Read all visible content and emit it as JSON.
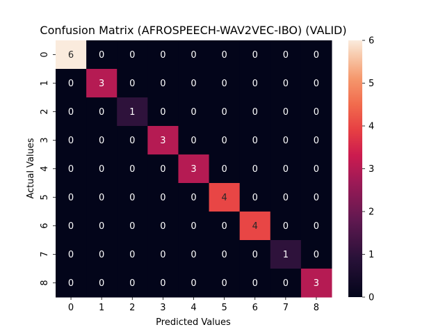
{
  "chart_data": {
    "type": "heatmap",
    "title": "Confusion Matrix (AFROSPEECH-WAV2VEC-IBO) (VALID)",
    "xlabel": "Predicted Values",
    "ylabel": "Actual Values",
    "x_categories": [
      "0",
      "1",
      "2",
      "3",
      "4",
      "5",
      "6",
      "7",
      "8"
    ],
    "y_categories": [
      "0",
      "1",
      "2",
      "3",
      "4",
      "5",
      "6",
      "7",
      "8"
    ],
    "values": [
      [
        6,
        0,
        0,
        0,
        0,
        0,
        0,
        0,
        0
      ],
      [
        0,
        3,
        0,
        0,
        0,
        0,
        0,
        0,
        0
      ],
      [
        0,
        0,
        1,
        0,
        0,
        0,
        0,
        0,
        0
      ],
      [
        0,
        0,
        0,
        3,
        0,
        0,
        0,
        0,
        0
      ],
      [
        0,
        0,
        0,
        0,
        3,
        0,
        0,
        0,
        0
      ],
      [
        0,
        0,
        0,
        0,
        0,
        4,
        0,
        0,
        0
      ],
      [
        0,
        0,
        0,
        0,
        0,
        0,
        4,
        0,
        0
      ],
      [
        0,
        0,
        0,
        0,
        0,
        0,
        0,
        1,
        0
      ],
      [
        0,
        0,
        0,
        0,
        0,
        0,
        0,
        0,
        3
      ]
    ],
    "colorbar": {
      "range": [
        0,
        6
      ],
      "ticks": [
        "0",
        "1",
        "2",
        "3",
        "4",
        "5",
        "6"
      ],
      "colormap": "rocket"
    },
    "annotations": true,
    "grid": false
  }
}
